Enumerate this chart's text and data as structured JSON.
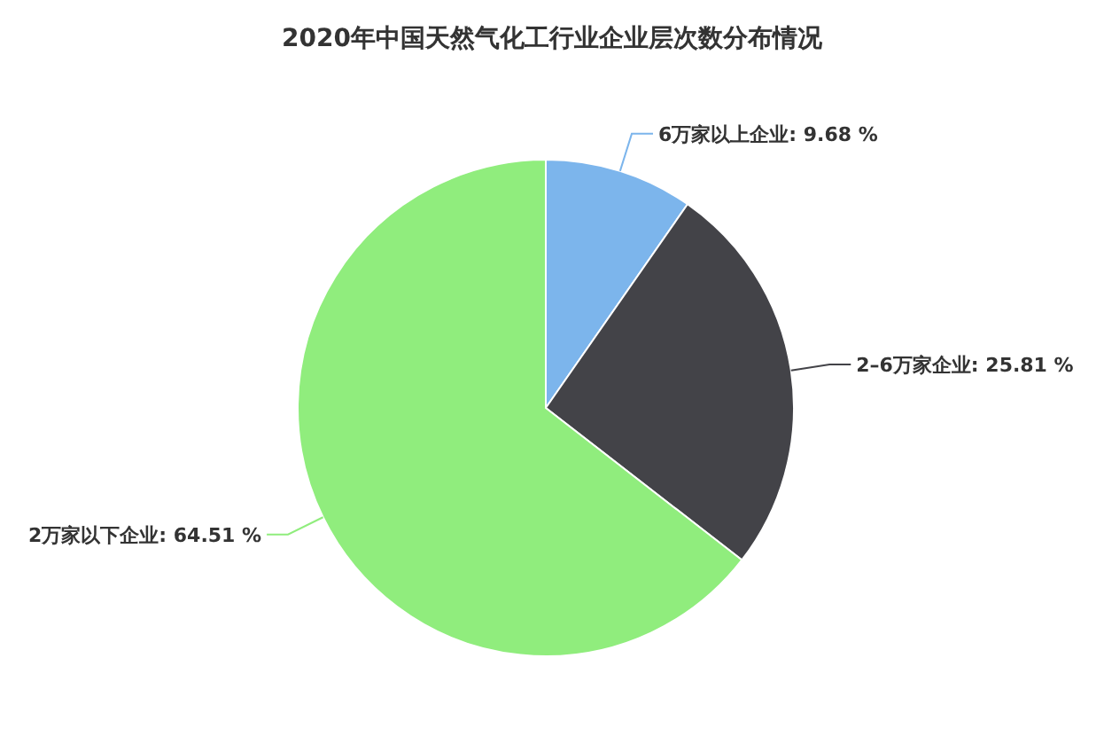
{
  "chart_data": {
    "type": "pie",
    "title": "2020年中国天然气化工行业企业层次数分布情况",
    "categories": [
      "6万家以上企业",
      "2–6万家企业",
      "2万家以下企业"
    ],
    "values": [
      9.68,
      25.81,
      64.51
    ],
    "value_labels": [
      "9.68 %",
      "25.81 %",
      "64.51 %"
    ],
    "colors": [
      "#7cb5ec",
      "#434348",
      "#90ed7d"
    ],
    "legend": false
  }
}
